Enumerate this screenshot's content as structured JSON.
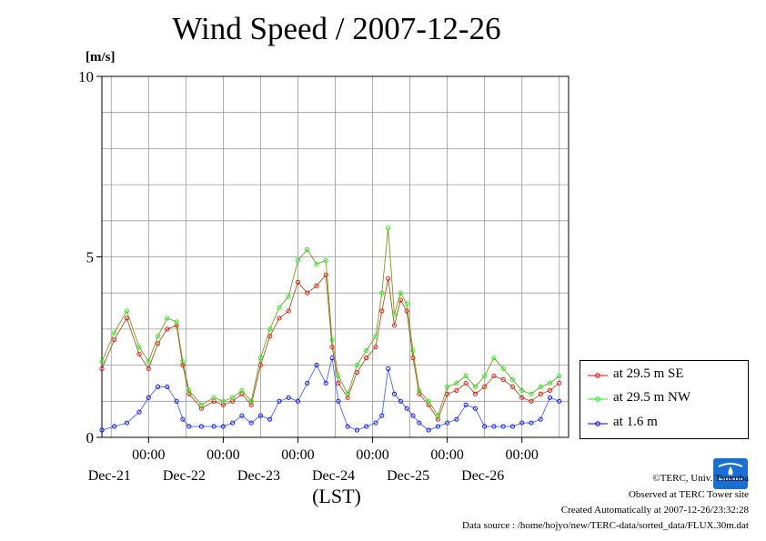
{
  "chart_data": {
    "type": "line",
    "title": "Wind Speed / 2007-12-26",
    "ylabel": "[m/s]",
    "xlabel": "(LST)",
    "ylim": [
      0,
      10
    ],
    "yticks": [
      "0",
      "5",
      "10"
    ],
    "xlim": [
      "2007-12-20 09:00",
      "2007-12-26 15:00"
    ],
    "x_tick_labels": [
      {
        "time": "00:00",
        "date": "Dec-21"
      },
      {
        "time": "00:00",
        "date": "Dec-22"
      },
      {
        "time": "00:00",
        "date": "Dec-23"
      },
      {
        "time": "00:00",
        "date": "Dec-24"
      },
      {
        "time": "00:00",
        "date": "Dec-25"
      },
      {
        "time": "00:00",
        "date": "Dec-26"
      }
    ],
    "grid": true,
    "legend_position": "right",
    "series": [
      {
        "name": "at 29.5 m SE",
        "color": "#ff0000",
        "points": [
          [
            "2007-12-20 09:00",
            1.9
          ],
          [
            "2007-12-20 13:00",
            2.7
          ],
          [
            "2007-12-20 17:00",
            3.3
          ],
          [
            "2007-12-20 21:00",
            2.3
          ],
          [
            "2007-12-21 00:00",
            1.9
          ],
          [
            "2007-12-21 03:00",
            2.6
          ],
          [
            "2007-12-21 06:00",
            3.0
          ],
          [
            "2007-12-21 09:00",
            3.1
          ],
          [
            "2007-12-21 11:00",
            2.0
          ],
          [
            "2007-12-21 13:00",
            1.2
          ],
          [
            "2007-12-21 17:00",
            0.8
          ],
          [
            "2007-12-21 21:00",
            1.0
          ],
          [
            "2007-12-22 00:00",
            0.9
          ],
          [
            "2007-12-22 03:00",
            1.0
          ],
          [
            "2007-12-22 06:00",
            1.2
          ],
          [
            "2007-12-22 09:00",
            0.9
          ],
          [
            "2007-12-22 12:00",
            2.0
          ],
          [
            "2007-12-22 15:00",
            2.8
          ],
          [
            "2007-12-22 18:00",
            3.3
          ],
          [
            "2007-12-22 21:00",
            3.5
          ],
          [
            "2007-12-23 00:00",
            4.3
          ],
          [
            "2007-12-23 03:00",
            4.0
          ],
          [
            "2007-12-23 06:00",
            4.2
          ],
          [
            "2007-12-23 09:00",
            4.5
          ],
          [
            "2007-12-23 11:00",
            2.5
          ],
          [
            "2007-12-23 13:00",
            1.5
          ],
          [
            "2007-12-23 16:00",
            1.1
          ],
          [
            "2007-12-23 19:00",
            1.8
          ],
          [
            "2007-12-23 22:00",
            2.2
          ],
          [
            "2007-12-24 01:00",
            2.5
          ],
          [
            "2007-12-24 03:00",
            3.5
          ],
          [
            "2007-12-24 05:00",
            4.4
          ],
          [
            "2007-12-24 07:00",
            3.1
          ],
          [
            "2007-12-24 09:00",
            3.8
          ],
          [
            "2007-12-24 11:00",
            3.5
          ],
          [
            "2007-12-24 13:00",
            2.2
          ],
          [
            "2007-12-24 15:00",
            1.2
          ],
          [
            "2007-12-24 18:00",
            0.9
          ],
          [
            "2007-12-24 21:00",
            0.5
          ],
          [
            "2007-12-25 00:00",
            1.2
          ],
          [
            "2007-12-25 03:00",
            1.3
          ],
          [
            "2007-12-25 06:00",
            1.5
          ],
          [
            "2007-12-25 09:00",
            1.2
          ],
          [
            "2007-12-25 12:00",
            1.4
          ],
          [
            "2007-12-25 15:00",
            1.7
          ],
          [
            "2007-12-25 18:00",
            1.6
          ],
          [
            "2007-12-25 21:00",
            1.4
          ],
          [
            "2007-12-26 00:00",
            1.1
          ],
          [
            "2007-12-26 03:00",
            1.0
          ],
          [
            "2007-12-26 06:00",
            1.2
          ],
          [
            "2007-12-26 09:00",
            1.3
          ],
          [
            "2007-12-26 12:00",
            1.5
          ]
        ]
      },
      {
        "name": "at 29.5 m NW",
        "color": "#00ff00",
        "points": [
          [
            "2007-12-20 09:00",
            2.1
          ],
          [
            "2007-12-20 13:00",
            2.9
          ],
          [
            "2007-12-20 17:00",
            3.5
          ],
          [
            "2007-12-20 21:00",
            2.5
          ],
          [
            "2007-12-21 00:00",
            2.1
          ],
          [
            "2007-12-21 03:00",
            2.8
          ],
          [
            "2007-12-21 06:00",
            3.3
          ],
          [
            "2007-12-21 09:00",
            3.2
          ],
          [
            "2007-12-21 11:00",
            2.1
          ],
          [
            "2007-12-21 13:00",
            1.3
          ],
          [
            "2007-12-21 17:00",
            0.9
          ],
          [
            "2007-12-21 21:00",
            1.1
          ],
          [
            "2007-12-22 00:00",
            1.0
          ],
          [
            "2007-12-22 03:00",
            1.1
          ],
          [
            "2007-12-22 06:00",
            1.3
          ],
          [
            "2007-12-22 09:00",
            1.0
          ],
          [
            "2007-12-22 12:00",
            2.2
          ],
          [
            "2007-12-22 15:00",
            3.0
          ],
          [
            "2007-12-22 18:00",
            3.6
          ],
          [
            "2007-12-22 21:00",
            3.9
          ],
          [
            "2007-12-23 00:00",
            4.9
          ],
          [
            "2007-12-23 03:00",
            5.2
          ],
          [
            "2007-12-23 06:00",
            4.8
          ],
          [
            "2007-12-23 09:00",
            4.9
          ],
          [
            "2007-12-23 11:00",
            2.7
          ],
          [
            "2007-12-23 13:00",
            1.7
          ],
          [
            "2007-12-23 16:00",
            1.2
          ],
          [
            "2007-12-23 19:00",
            2.0
          ],
          [
            "2007-12-23 22:00",
            2.4
          ],
          [
            "2007-12-24 01:00",
            2.8
          ],
          [
            "2007-12-24 03:00",
            4.0
          ],
          [
            "2007-12-24 05:00",
            5.8
          ],
          [
            "2007-12-24 07:00",
            3.4
          ],
          [
            "2007-12-24 09:00",
            4.0
          ],
          [
            "2007-12-24 11:00",
            3.7
          ],
          [
            "2007-12-24 13:00",
            2.4
          ],
          [
            "2007-12-24 15:00",
            1.3
          ],
          [
            "2007-12-24 18:00",
            1.0
          ],
          [
            "2007-12-24 21:00",
            0.6
          ],
          [
            "2007-12-25 00:00",
            1.4
          ],
          [
            "2007-12-25 03:00",
            1.5
          ],
          [
            "2007-12-25 06:00",
            1.7
          ],
          [
            "2007-12-25 09:00",
            1.4
          ],
          [
            "2007-12-25 12:00",
            1.7
          ],
          [
            "2007-12-25 15:00",
            2.2
          ],
          [
            "2007-12-25 18:00",
            1.9
          ],
          [
            "2007-12-25 21:00",
            1.6
          ],
          [
            "2007-12-26 00:00",
            1.3
          ],
          [
            "2007-12-26 03:00",
            1.2
          ],
          [
            "2007-12-26 06:00",
            1.4
          ],
          [
            "2007-12-26 09:00",
            1.5
          ],
          [
            "2007-12-26 12:00",
            1.7
          ]
        ]
      },
      {
        "name": "at 1.6 m",
        "color": "#0000ff",
        "points": [
          [
            "2007-12-20 09:00",
            0.2
          ],
          [
            "2007-12-20 13:00",
            0.3
          ],
          [
            "2007-12-20 17:00",
            0.4
          ],
          [
            "2007-12-20 21:00",
            0.7
          ],
          [
            "2007-12-21 00:00",
            1.1
          ],
          [
            "2007-12-21 03:00",
            1.4
          ],
          [
            "2007-12-21 06:00",
            1.4
          ],
          [
            "2007-12-21 09:00",
            1.0
          ],
          [
            "2007-12-21 11:00",
            0.5
          ],
          [
            "2007-12-21 13:00",
            0.3
          ],
          [
            "2007-12-21 17:00",
            0.3
          ],
          [
            "2007-12-21 21:00",
            0.3
          ],
          [
            "2007-12-22 00:00",
            0.3
          ],
          [
            "2007-12-22 03:00",
            0.4
          ],
          [
            "2007-12-22 06:00",
            0.6
          ],
          [
            "2007-12-22 09:00",
            0.4
          ],
          [
            "2007-12-22 12:00",
            0.6
          ],
          [
            "2007-12-22 15:00",
            0.5
          ],
          [
            "2007-12-22 18:00",
            1.0
          ],
          [
            "2007-12-22 21:00",
            1.1
          ],
          [
            "2007-12-23 00:00",
            1.0
          ],
          [
            "2007-12-23 03:00",
            1.5
          ],
          [
            "2007-12-23 06:00",
            2.0
          ],
          [
            "2007-12-23 09:00",
            1.5
          ],
          [
            "2007-12-23 11:00",
            2.2
          ],
          [
            "2007-12-23 13:00",
            1.0
          ],
          [
            "2007-12-23 16:00",
            0.3
          ],
          [
            "2007-12-23 19:00",
            0.2
          ],
          [
            "2007-12-23 22:00",
            0.3
          ],
          [
            "2007-12-24 01:00",
            0.4
          ],
          [
            "2007-12-24 03:00",
            0.6
          ],
          [
            "2007-12-24 05:00",
            1.9
          ],
          [
            "2007-12-24 07:00",
            1.2
          ],
          [
            "2007-12-24 09:00",
            1.0
          ],
          [
            "2007-12-24 11:00",
            0.8
          ],
          [
            "2007-12-24 13:00",
            0.6
          ],
          [
            "2007-12-24 15:00",
            0.4
          ],
          [
            "2007-12-24 18:00",
            0.2
          ],
          [
            "2007-12-24 21:00",
            0.3
          ],
          [
            "2007-12-25 00:00",
            0.4
          ],
          [
            "2007-12-25 03:00",
            0.5
          ],
          [
            "2007-12-25 06:00",
            0.9
          ],
          [
            "2007-12-25 09:00",
            0.8
          ],
          [
            "2007-12-25 12:00",
            0.3
          ],
          [
            "2007-12-25 15:00",
            0.3
          ],
          [
            "2007-12-25 18:00",
            0.3
          ],
          [
            "2007-12-25 21:00",
            0.3
          ],
          [
            "2007-12-26 00:00",
            0.4
          ],
          [
            "2007-12-26 03:00",
            0.4
          ],
          [
            "2007-12-26 06:00",
            0.5
          ],
          [
            "2007-12-26 09:00",
            1.1
          ],
          [
            "2007-12-26 12:00",
            1.0
          ]
        ]
      }
    ]
  },
  "credits": {
    "copyright": "©TERC, Univ. Tsukuba",
    "observed": "Observed at TERC Tower site",
    "created": "Created Automatically at 2007-12-26/23:32:28",
    "source": "Data source : /home/hojyo/new/TERC-data/sorted_data/FLUX.30m.dat"
  },
  "logo_text": "TERC"
}
